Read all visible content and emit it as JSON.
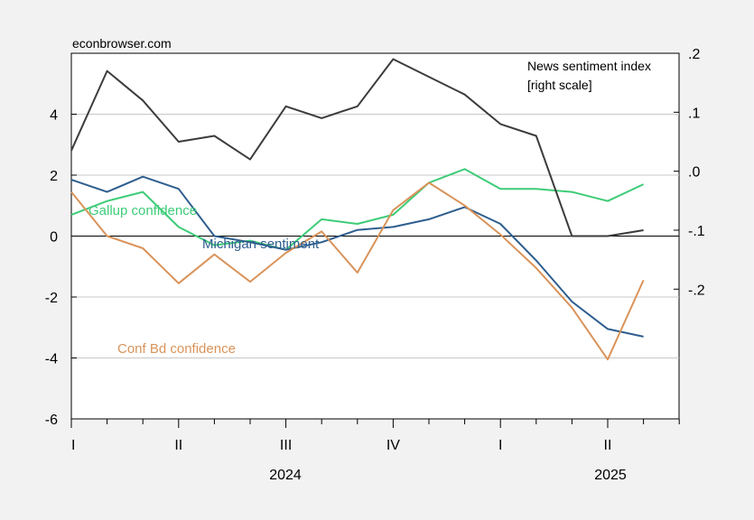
{
  "source_text": "econbrowser.com",
  "chart_data": {
    "type": "line",
    "title": "",
    "grid": "horizontal gridlines on left scale",
    "x_labels": {
      "quarters": [
        "I",
        "II",
        "III",
        "IV",
        "I",
        "II"
      ],
      "years": [
        "2024",
        "2025"
      ]
    },
    "x_months": [
      "2024-01",
      "2024-02",
      "2024-03",
      "2024-04",
      "2024-05",
      "2024-06",
      "2024-07",
      "2024-08",
      "2024-09",
      "2024-10",
      "2024-11",
      "2024-12",
      "2025-01",
      "2025-02",
      "2025-03",
      "2025-04",
      "2025-05"
    ],
    "left_axis": {
      "ylim": [
        -6,
        6
      ],
      "ticks": [
        "-6",
        "-4",
        "-2",
        "0",
        "2",
        "4"
      ]
    },
    "right_axis": {
      "ylim": [
        -0.42,
        0.2
      ],
      "ticks": [
        ".2",
        ".1",
        ".0",
        "-.1",
        "-.2"
      ]
    },
    "series": [
      {
        "name": "Gallup confidence",
        "axis": "left",
        "color": "#3dcc78",
        "values": [
          0.7,
          1.15,
          1.45,
          0.3,
          -0.3,
          -0.15,
          -0.45,
          0.55,
          0.4,
          0.7,
          1.75,
          2.2,
          1.55,
          1.55,
          1.45,
          1.15,
          1.7
        ]
      },
      {
        "name": "Michigan sentiment",
        "axis": "left",
        "color": "#2e5e8e",
        "values": [
          1.85,
          1.45,
          1.95,
          1.55,
          0.0,
          -0.2,
          -0.45,
          -0.2,
          0.2,
          0.3,
          0.55,
          0.95,
          0.4,
          -0.8,
          -2.15,
          -3.05,
          -3.3
        ]
      },
      {
        "name": "Conf Bd confidence",
        "axis": "left",
        "color": "#d9935a",
        "values": [
          1.45,
          0.0,
          -0.4,
          -1.55,
          -0.6,
          -1.5,
          -0.55,
          0.15,
          -1.2,
          0.85,
          1.75,
          1.0,
          0.05,
          -1.05,
          -2.35,
          -4.05,
          -1.45
        ]
      },
      {
        "name": "News sentiment index",
        "axis": "right",
        "color": "#3c3c3c",
        "values": [
          0.035,
          0.17,
          0.12,
          0.05,
          0.06,
          0.02,
          0.11,
          0.09,
          0.11,
          0.19,
          0.16,
          0.13,
          0.08,
          0.06,
          -0.11,
          -0.11,
          -0.1
        ]
      }
    ],
    "annotations": {
      "news_line1": "News sentiment index",
      "news_line2": "[right scale]",
      "gallup": "Gallup confidence",
      "michigan": "Michigan sentiment",
      "confbd": "Conf Bd confidence"
    }
  }
}
